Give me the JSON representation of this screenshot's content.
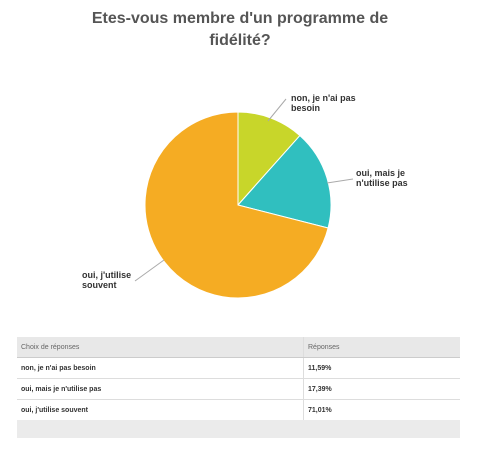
{
  "chart_data": {
    "type": "pie",
    "title": "Etes-vous membre d'un programme de fidélité?",
    "slices": [
      {
        "label": "non, je n'ai pas besoin",
        "value": 11.59,
        "color": "#c8d62a"
      },
      {
        "label": "oui, mais je n'utilise pas",
        "value": 17.39,
        "color": "#30bfbf"
      },
      {
        "label": "oui, j'utilise souvent",
        "value": 71.01,
        "color": "#f5ac23"
      }
    ],
    "callouts": [
      {
        "lines": [
          "non, je n'ai pas",
          "besoin"
        ]
      },
      {
        "lines": [
          "oui, mais je",
          "n'utilise pas"
        ]
      },
      {
        "lines": [
          "oui, j'utilise",
          "souvent"
        ]
      }
    ]
  },
  "table": {
    "headers": [
      "Choix de réponses",
      "Réponses"
    ],
    "rows": [
      [
        "non, je n'ai pas besoin",
        "11,59%"
      ],
      [
        "oui, mais je n'utilise pas",
        "17,39%"
      ],
      [
        "oui, j'utilise souvent",
        "71,01%"
      ]
    ]
  }
}
